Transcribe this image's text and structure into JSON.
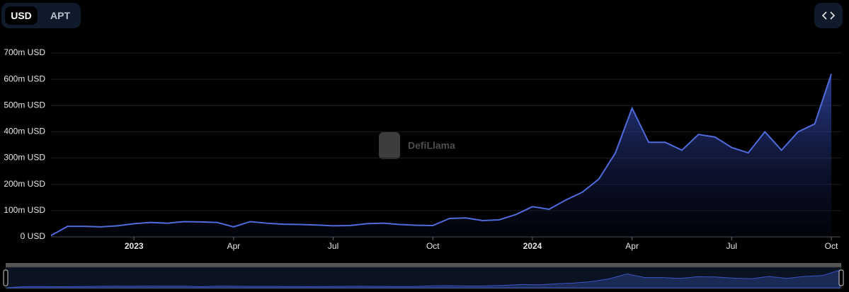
{
  "ui": {
    "tabs": [
      "USD",
      "APT"
    ],
    "watermark": "DefiLlama"
  },
  "chart_data": {
    "type": "area",
    "color": "#4f6bdc",
    "grid": true,
    "categories": [
      null,
      null,
      null,
      null,
      null,
      "2023",
      null,
      null,
      null,
      null,
      null,
      "Apr",
      null,
      null,
      null,
      null,
      null,
      "Jul",
      null,
      null,
      null,
      null,
      null,
      "Oct",
      null,
      null,
      null,
      null,
      null,
      "2024",
      null,
      null,
      null,
      null,
      null,
      "Apr",
      null,
      null,
      null,
      null,
      null,
      "Jul",
      null,
      null,
      null,
      null,
      null,
      "Oct"
    ],
    "values": [
      5,
      40,
      40,
      38,
      42,
      50,
      55,
      52,
      58,
      57,
      55,
      38,
      58,
      52,
      48,
      47,
      45,
      42,
      43,
      50,
      52,
      47,
      44,
      43,
      70,
      72,
      62,
      65,
      85,
      115,
      105,
      140,
      170,
      220,
      320,
      490,
      360,
      360,
      330,
      390,
      380,
      340,
      320,
      400,
      330,
      400,
      430,
      620
    ],
    "ylim": [
      0,
      700
    ],
    "yticks": [
      {
        "value": 0,
        "label": "0 USD"
      },
      {
        "value": 100,
        "label": "100m USD"
      },
      {
        "value": 200,
        "label": "200m USD"
      },
      {
        "value": 300,
        "label": "300m USD"
      },
      {
        "value": 400,
        "label": "400m USD"
      },
      {
        "value": 500,
        "label": "500m USD"
      },
      {
        "value": 600,
        "label": "600m USD"
      },
      {
        "value": 700,
        "label": "700m USD"
      }
    ]
  }
}
